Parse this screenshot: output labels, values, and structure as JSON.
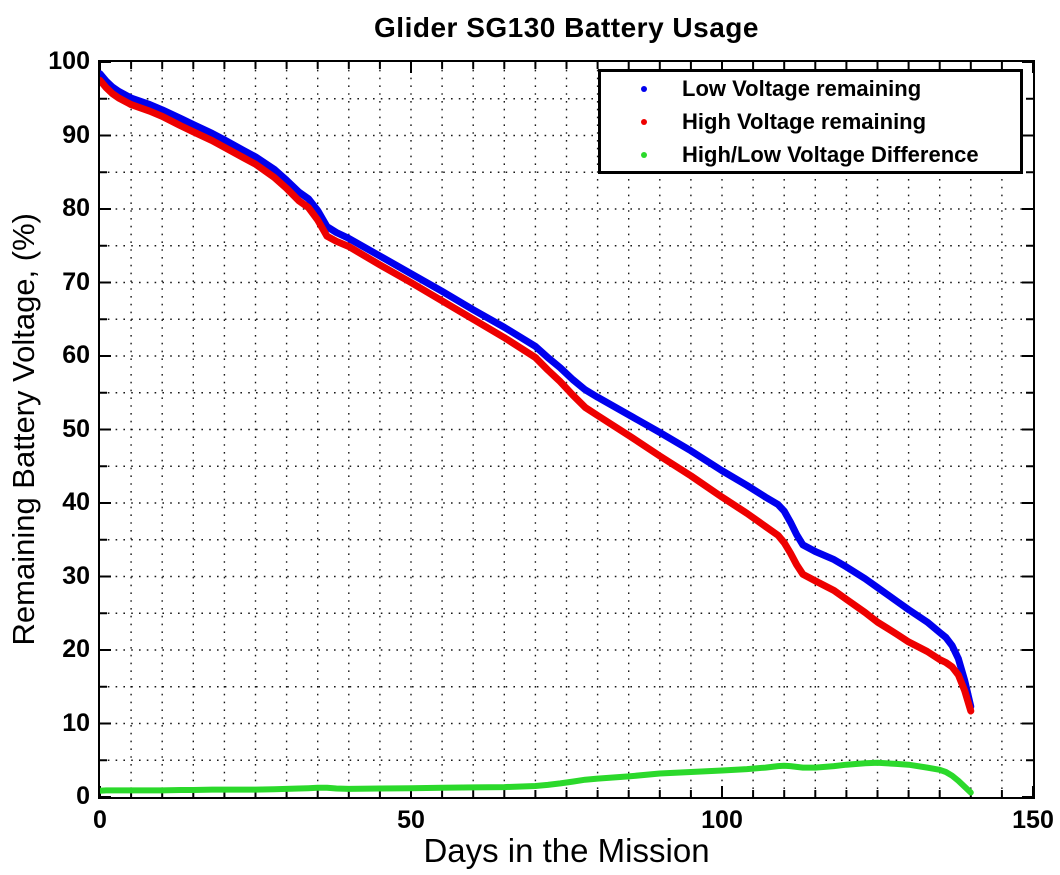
{
  "figure": {
    "background": "#ffffff",
    "axis_color": "#000000",
    "text_color": "#000000"
  },
  "chart_data": {
    "type": "line",
    "title": "Glider SG130 Battery Usage",
    "xlabel": "Days in the Mission",
    "ylabel": "Remaining Battery Voltage, (%)",
    "xlim": [
      0,
      150
    ],
    "ylim": [
      0,
      100
    ],
    "xticks": [
      0,
      50,
      100,
      150
    ],
    "yticks": [
      0,
      10,
      20,
      30,
      40,
      50,
      60,
      70,
      80,
      90,
      100
    ],
    "minor_tick_step_x": 5,
    "minor_tick_step_y": 5,
    "grid": "on",
    "grid_style": "dotted",
    "grid_step_x": 5,
    "grid_step_y": 5,
    "legend_position": "top-right",
    "marker": "dot",
    "x": [
      0,
      1,
      2,
      3,
      5,
      8,
      10,
      13,
      15,
      18,
      20,
      23,
      25,
      28,
      30,
      32,
      33.5,
      35,
      36.5,
      38,
      40,
      45,
      50,
      55,
      60,
      65,
      70,
      72,
      74,
      76,
      78,
      80,
      85,
      90,
      95,
      100,
      104,
      107,
      109,
      110,
      111,
      112,
      113,
      115,
      118,
      120,
      123,
      125,
      128,
      130,
      133,
      135,
      136,
      137,
      138,
      139,
      140
    ],
    "series": [
      {
        "name": "Low Voltage remaining",
        "color": "#0000EE",
        "line_width": 7,
        "values": [
          98.4,
          97.4,
          96.6,
          96.0,
          95.1,
          94.2,
          93.5,
          92.3,
          91.5,
          90.3,
          89.4,
          88.0,
          87.1,
          85.4,
          83.9,
          82.3,
          81.4,
          79.8,
          77.6,
          76.8,
          76.0,
          73.6,
          71.2,
          68.8,
          66.3,
          63.9,
          61.3,
          59.8,
          58.4,
          56.8,
          55.4,
          54.4,
          52.0,
          49.6,
          47.1,
          44.4,
          42.4,
          40.8,
          39.8,
          38.9,
          37.4,
          35.7,
          34.3,
          33.4,
          32.3,
          31.3,
          29.7,
          28.5,
          26.7,
          25.5,
          23.8,
          22.4,
          21.7,
          20.6,
          18.8,
          15.9,
          12.3
        ]
      },
      {
        "name": "High Voltage remaining",
        "color": "#EE0000",
        "line_width": 7,
        "values": [
          97.5,
          96.5,
          95.7,
          95.1,
          94.2,
          93.3,
          92.6,
          91.3,
          90.5,
          89.3,
          88.4,
          87.0,
          86.1,
          84.3,
          82.8,
          81.1,
          80.2,
          78.5,
          76.3,
          75.6,
          74.9,
          72.4,
          70.0,
          67.5,
          65.0,
          62.5,
          59.8,
          58.1,
          56.5,
          54.7,
          53.0,
          51.9,
          49.2,
          46.4,
          43.7,
          40.8,
          38.6,
          36.8,
          35.6,
          34.6,
          33.2,
          31.6,
          30.3,
          29.4,
          28.1,
          26.9,
          25.1,
          23.8,
          22.2,
          21.1,
          19.8,
          18.7,
          18.3,
          17.7,
          16.6,
          14.5,
          11.7
        ]
      },
      {
        "name": "High/Low Voltage Difference",
        "color": "#2BD92B",
        "line_width": 6,
        "values": [
          0.85,
          0.9,
          0.9,
          0.9,
          0.9,
          0.9,
          0.9,
          0.95,
          0.95,
          1.0,
          1.0,
          1.0,
          1.0,
          1.05,
          1.1,
          1.15,
          1.2,
          1.25,
          1.25,
          1.15,
          1.1,
          1.15,
          1.2,
          1.25,
          1.3,
          1.35,
          1.5,
          1.65,
          1.85,
          2.1,
          2.35,
          2.5,
          2.8,
          3.2,
          3.4,
          3.6,
          3.8,
          4.0,
          4.2,
          4.25,
          4.2,
          4.1,
          4.0,
          4.0,
          4.2,
          4.4,
          4.6,
          4.65,
          4.5,
          4.4,
          4.0,
          3.7,
          3.4,
          2.9,
          2.2,
          1.4,
          0.6
        ]
      }
    ]
  }
}
